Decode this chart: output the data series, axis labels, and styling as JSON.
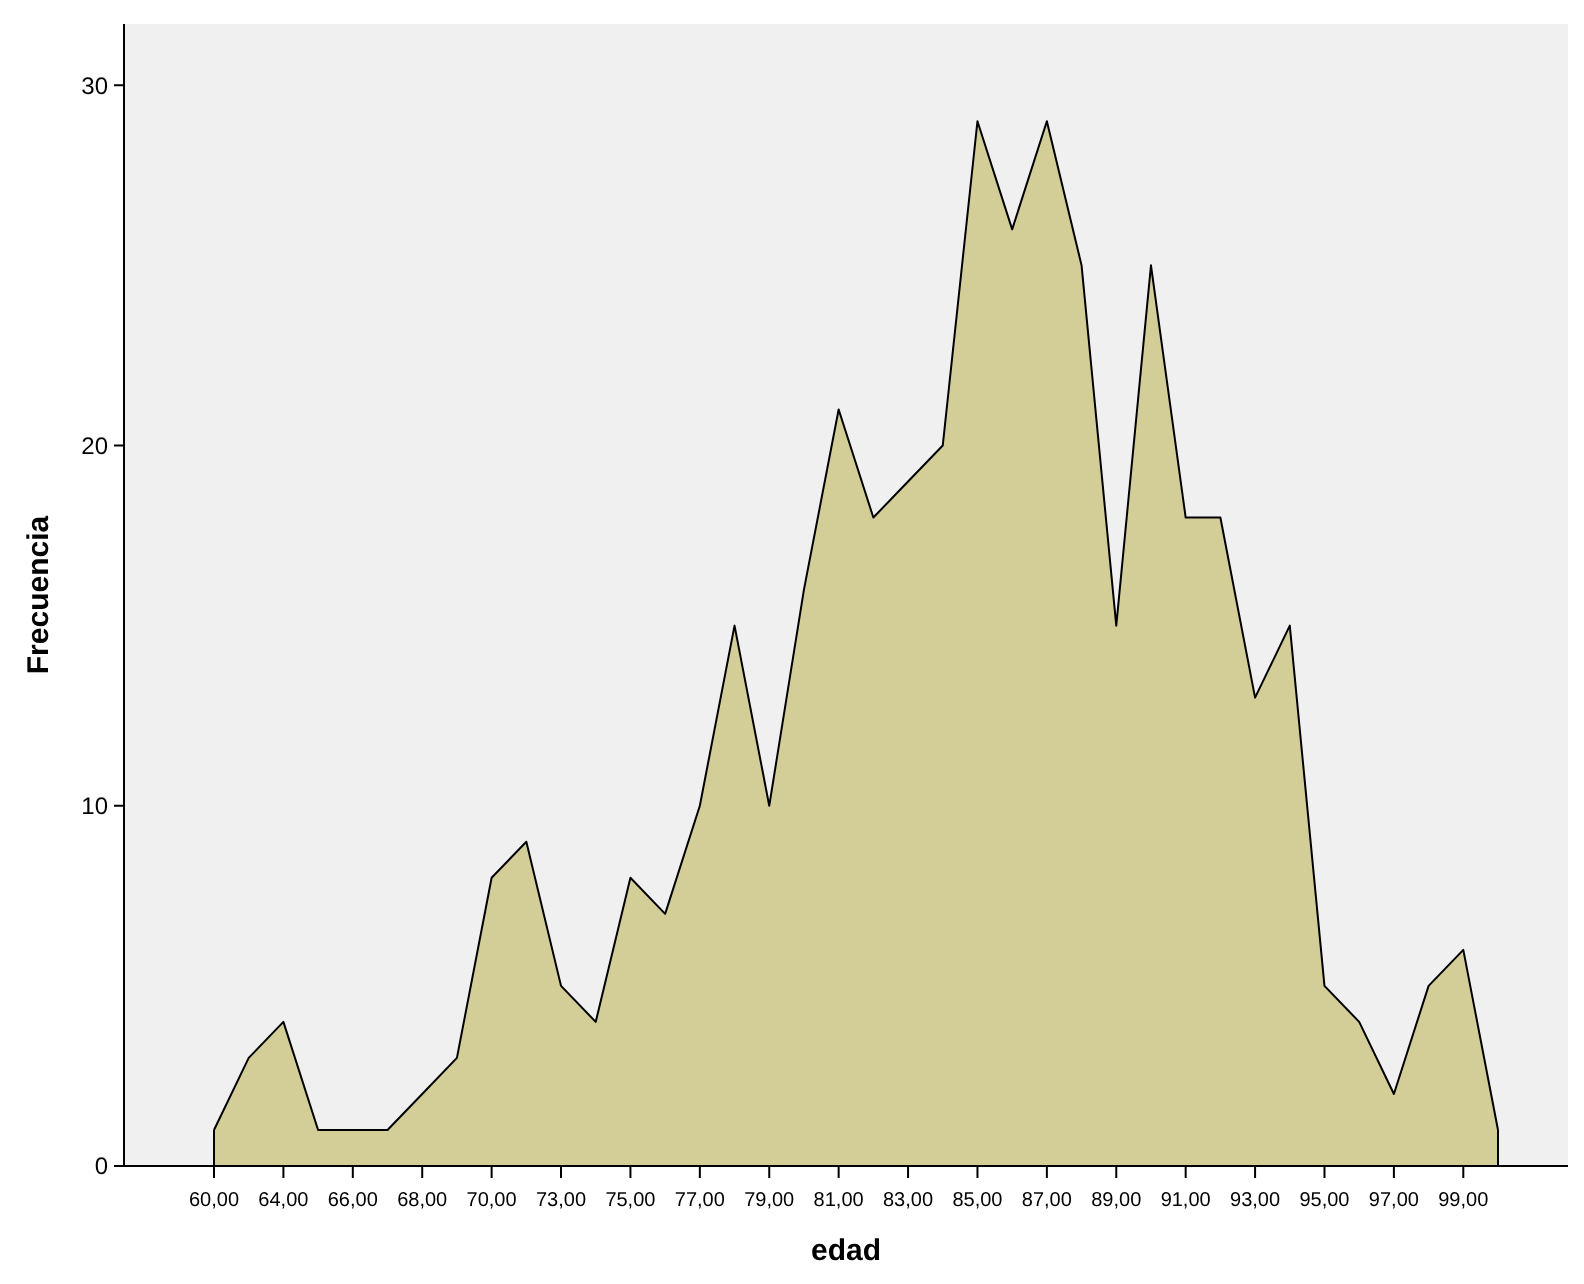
{
  "chart_data": {
    "type": "area",
    "xlabel": "edad",
    "ylabel": "Frecuencia",
    "categories": [
      "60,00",
      null,
      "64,00",
      null,
      "66,00",
      null,
      "68,00",
      null,
      "70,00",
      null,
      "73,00",
      null,
      "75,00",
      null,
      "77,00",
      null,
      "79,00",
      null,
      "81,00",
      null,
      "83,00",
      null,
      "85,00",
      null,
      "87,00",
      null,
      "89,00",
      null,
      "91,00",
      null,
      "93,00",
      null,
      "95,00",
      null,
      "97,00",
      null,
      "99,00",
      null
    ],
    "series": [
      {
        "color": "#d3ce97",
        "values": [
          1,
          3,
          4,
          1,
          1,
          1,
          2,
          3,
          8,
          9,
          5,
          4,
          8,
          7,
          10,
          15,
          10,
          16,
          21,
          18,
          19,
          20,
          29,
          26,
          29,
          25,
          15,
          25,
          18,
          18,
          13,
          15,
          5,
          4,
          2,
          5,
          6,
          1
        ]
      }
    ],
    "ylim": [
      0,
      31.7
    ],
    "yticks": [
      0,
      10,
      20,
      30
    ],
    "grid": false
  }
}
